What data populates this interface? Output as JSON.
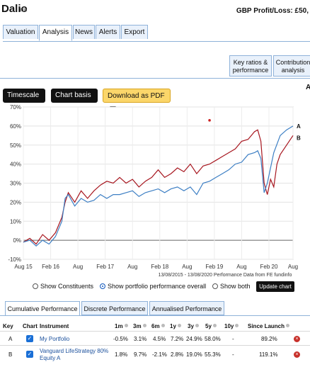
{
  "header": {
    "title": "Dalio",
    "edit_label": "Edit",
    "pl_label": "GBP Profit/Loss: £50,"
  },
  "tabs": [
    "Valuation",
    "Analysis",
    "News",
    "Alerts",
    "Export"
  ],
  "right_buttons": [
    {
      "line1": "Key ratios &",
      "line2": "performance"
    },
    {
      "line1": "Contribution",
      "line2": "analysis"
    }
  ],
  "side_letter": "A",
  "toolbar": {
    "timescale": "Timescale",
    "chart_basis": "Chart basis",
    "pdf": "Download as PDF"
  },
  "chart_data": {
    "type": "line",
    "y_ticks": [
      "70%",
      "60%",
      "50%",
      "40%",
      "30%",
      "20%",
      "10%",
      "0%",
      "-10%"
    ],
    "ylim": [
      -10,
      70
    ],
    "x_ticks": [
      "Aug 15",
      "Feb 16",
      "Aug",
      "Feb 17",
      "Aug",
      "Feb 18",
      "Aug",
      "Feb 19",
      "Aug",
      "Feb 20",
      "Aug"
    ],
    "footnote": "13/08/2015 - 13/08/2020 Performance Data from FE fundinfo",
    "series": [
      {
        "key": "A",
        "color": "#3d7fc4",
        "points": [
          [
            0,
            -1
          ],
          [
            2,
            0
          ],
          [
            4,
            -3
          ],
          [
            6,
            0
          ],
          [
            8,
            -2
          ],
          [
            10,
            2
          ],
          [
            12,
            10
          ],
          [
            13,
            22
          ],
          [
            14,
            24
          ],
          [
            16,
            18
          ],
          [
            17,
            20
          ],
          [
            18,
            22
          ],
          [
            20,
            20
          ],
          [
            22,
            21
          ],
          [
            24,
            24
          ],
          [
            26,
            22
          ],
          [
            28,
            24
          ],
          [
            30,
            24
          ],
          [
            32,
            25
          ],
          [
            34,
            26
          ],
          [
            36,
            23
          ],
          [
            38,
            25
          ],
          [
            40,
            26
          ],
          [
            42,
            27
          ],
          [
            44,
            25
          ],
          [
            46,
            27
          ],
          [
            48,
            28
          ],
          [
            50,
            26
          ],
          [
            52,
            28
          ],
          [
            54,
            24
          ],
          [
            56,
            30
          ],
          [
            58,
            31
          ],
          [
            60,
            33
          ],
          [
            62,
            35
          ],
          [
            64,
            37
          ],
          [
            66,
            40
          ],
          [
            68,
            41
          ],
          [
            70,
            45
          ],
          [
            72,
            46
          ],
          [
            73,
            47
          ],
          [
            74,
            43
          ],
          [
            75,
            25
          ],
          [
            76,
            30
          ],
          [
            78,
            46
          ],
          [
            80,
            55
          ],
          [
            82,
            58
          ],
          [
            84,
            60
          ]
        ]
      },
      {
        "key": "B",
        "color": "#a7161f",
        "points": [
          [
            0,
            -1
          ],
          [
            2,
            1
          ],
          [
            4,
            -2
          ],
          [
            6,
            3
          ],
          [
            8,
            0
          ],
          [
            10,
            4
          ],
          [
            12,
            12
          ],
          [
            13,
            20
          ],
          [
            14,
            25
          ],
          [
            16,
            20
          ],
          [
            18,
            26
          ],
          [
            20,
            22
          ],
          [
            22,
            26
          ],
          [
            24,
            29
          ],
          [
            26,
            31
          ],
          [
            28,
            30
          ],
          [
            30,
            33
          ],
          [
            32,
            30
          ],
          [
            34,
            32
          ],
          [
            36,
            28
          ],
          [
            38,
            31
          ],
          [
            40,
            33
          ],
          [
            42,
            37
          ],
          [
            44,
            33
          ],
          [
            46,
            35
          ],
          [
            48,
            38
          ],
          [
            50,
            36
          ],
          [
            52,
            40
          ],
          [
            54,
            35
          ],
          [
            56,
            39
          ],
          [
            58,
            40
          ],
          [
            60,
            42
          ],
          [
            62,
            44
          ],
          [
            64,
            46
          ],
          [
            66,
            48
          ],
          [
            68,
            52
          ],
          [
            70,
            53
          ],
          [
            72,
            57
          ],
          [
            73,
            58
          ],
          [
            74,
            52
          ],
          [
            75,
            30
          ],
          [
            76,
            24
          ],
          [
            77,
            32
          ],
          [
            78,
            28
          ],
          [
            79,
            40
          ],
          [
            80,
            45
          ],
          [
            82,
            50
          ],
          [
            84,
            55
          ]
        ]
      }
    ],
    "marker": {
      "x": 58,
      "y": 63,
      "color": "#c22"
    },
    "legend": [
      "A",
      "B"
    ]
  },
  "radios": {
    "constituents": "Show Constituents",
    "portfolio": "Show portfolio performance overall",
    "both": "Show both",
    "update": "Update chart"
  },
  "perf_tabs": [
    "Cumulative Performance",
    "Discrete Performance",
    "Annualised Performance"
  ],
  "table": {
    "headers": [
      "Key",
      "Chart",
      "Instrument",
      "1m",
      "3m",
      "6m",
      "1y",
      "3y",
      "5y",
      "10y",
      "Since Launch"
    ],
    "rows": [
      {
        "key": "A",
        "instrument": "My Portfolio",
        "instrument2": "",
        "m1": "-0.5%",
        "m3": "3.1%",
        "m6": "4.5%",
        "y1": "7.2%",
        "y3": "24.9%",
        "y5": "58.0%",
        "y10": "-",
        "since": "89.2%"
      },
      {
        "key": "B",
        "instrument": "Vanguard LifeStrategy 80%",
        "instrument2": "Equity A",
        "m1": "1.8%",
        "m3": "9.7%",
        "m6": "-2.1%",
        "y1": "2.8%",
        "y3": "19.0%",
        "y5": "55.3%",
        "y10": "-",
        "since": "119.1%"
      }
    ]
  }
}
